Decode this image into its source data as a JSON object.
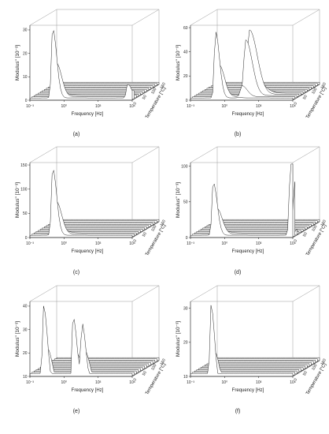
{
  "figure": {
    "panels": [
      {
        "id": "a",
        "label": "(a)",
        "y_ticks": [
          "0",
          "10",
          "20",
          "30"
        ],
        "zmax": 32,
        "y_label": "Modulus\" [10⁻³]"
      },
      {
        "id": "b",
        "label": "(b)",
        "y_ticks": [
          "0",
          "20",
          "40",
          "60"
        ],
        "zmax": 62,
        "y_label": "Modulus\" [10⁻³]"
      },
      {
        "id": "c",
        "label": "(c)",
        "y_ticks": [
          "0",
          "50",
          "100",
          "150"
        ],
        "zmax": 155,
        "y_label": "Modulus\" [10⁻³]"
      },
      {
        "id": "d",
        "label": "(d)",
        "y_ticks": [
          "0",
          "50",
          "100"
        ],
        "zmax": 105,
        "y_label": "Modulus\" [10⁻³]"
      },
      {
        "id": "e",
        "label": "(e)",
        "y_ticks": [
          "10",
          "20",
          "30",
          "40"
        ],
        "zmax": 42,
        "y_label": "Modulus\" [10⁻³]"
      },
      {
        "id": "f",
        "label": "(f)",
        "y_ticks": [
          "10",
          "20",
          "30"
        ],
        "zmax": 32,
        "y_label": "Modulus\" [10⁻³]"
      }
    ],
    "x_label": "Frequency [Hz]",
    "x_ticks": [
      "10⁻³",
      "10⁰",
      "10³",
      "10⁶"
    ],
    "t_label": "Temperature [°C]",
    "t_ticks": [
      "0",
      "50",
      "100",
      "150"
    ]
  },
  "chart_data": [
    {
      "type": "surface3d",
      "panel": "a",
      "x_scale": "log",
      "xlim": [
        0.001,
        1000000
      ],
      "tlim": [
        0,
        150
      ],
      "zlim": [
        0,
        32
      ],
      "peaks": [
        {
          "logf": -1.0,
          "t": 0,
          "z": 30
        },
        {
          "logf": 5.6,
          "t": 0,
          "z": 6
        }
      ]
    },
    {
      "type": "surface3d",
      "panel": "b",
      "x_scale": "log",
      "xlim": [
        0.001,
        1000000
      ],
      "tlim": [
        0,
        150
      ],
      "zlim": [
        0,
        62
      ],
      "peaks": [
        {
          "logf": -0.8,
          "t": 0,
          "z": 55
        },
        {
          "logf": 1.2,
          "t": 30,
          "z": 60
        }
      ]
    },
    {
      "type": "surface3d",
      "panel": "c",
      "x_scale": "log",
      "xlim": [
        0.001,
        1000000
      ],
      "tlim": [
        0,
        150
      ],
      "zlim": [
        0,
        155
      ],
      "peaks": [
        {
          "logf": -1.0,
          "t": 0,
          "z": 140
        }
      ]
    },
    {
      "type": "surface3d",
      "panel": "d",
      "x_scale": "log",
      "xlim": [
        0.001,
        1000000
      ],
      "tlim": [
        0,
        150
      ],
      "zlim": [
        0,
        105
      ],
      "peaks": [
        {
          "logf": -1.0,
          "t": 0,
          "z": 75
        },
        {
          "logf": 5.8,
          "t": 0,
          "z": 98
        },
        {
          "logf": 6.0,
          "t": 0,
          "z": 95
        }
      ]
    },
    {
      "type": "surface3d",
      "panel": "e",
      "x_scale": "log",
      "xlim": [
        0.001,
        1000000
      ],
      "tlim": [
        0,
        150
      ],
      "zlim": [
        10,
        42
      ],
      "peaks": [
        {
          "logf": -1.8,
          "t": 0,
          "z": 40
        },
        {
          "logf": 0.8,
          "t": 0,
          "z": 35
        },
        {
          "logf": 1.6,
          "t": 0,
          "z": 30
        }
      ]
    },
    {
      "type": "surface3d",
      "panel": "f",
      "x_scale": "log",
      "xlim": [
        0.001,
        1000000
      ],
      "tlim": [
        0,
        150
      ],
      "zlim": [
        10,
        32
      ],
      "peaks": [
        {
          "logf": -1.2,
          "t": 0,
          "z": 30
        }
      ]
    }
  ]
}
